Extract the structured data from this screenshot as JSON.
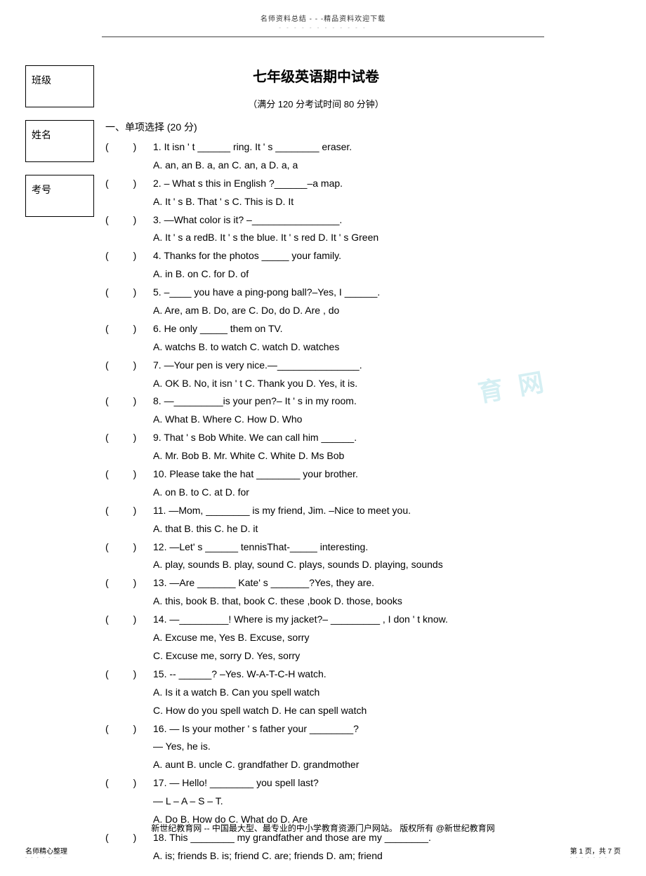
{
  "header": {
    "top_text": "名师资料总结 - - -精品资料欢迎下载",
    "dots": "- - - - - - - - - - - -"
  },
  "labels": {
    "class": "班级",
    "name": "姓名",
    "exam_no": "考号"
  },
  "title": "七年级英语期中试卷",
  "subtitle": "（满分  120 分考试时间   80 分钟）",
  "section": "一、单项选择 (20 分)",
  "questions": [
    {
      "num": "1",
      "text": "It isn '  t ______ ring. It  '  s ________ eraser.",
      "opts": "A. an, an   B. a, an     C. an, a            D. a, a"
    },
    {
      "num": "2",
      "text": "– What  s this in English ?______–a map.",
      "opts": "A. It '  s  B. That '  s                C. This is      D. It"
    },
    {
      "num": "3",
      "text": "—What color is it? –________________.",
      "opts": "A. It  '  s a redB. It  '  s the blue. It  '  s red    D. It '  s Green"
    },
    {
      "num": "4",
      "text": "Thanks for the photos _____ your family.",
      "opts": "A. in            B. on               C. for           D. of"
    },
    {
      "num": "5",
      "text": "–____ you have a ping-pong ball?–Yes, I ______.",
      "opts": "A. Are, am         B. Do, are        C. Do, do       D. Are , do"
    },
    {
      "num": "6",
      "text": "He only _____ them on TV.",
      "opts": "A. watchs         B. to watch        C. watch       D. watches"
    },
    {
      "num": "7",
      "text": "—Your pen is very nice.—_______________.",
      "opts": "A. OK                B. No, it isn    '   t  C. Thank you      D. Yes, it is."
    },
    {
      "num": "8",
      "text": "—_________is your pen?– It ' s in my room.",
      "opts": "A. What            B. Where          C. How            D. Who"
    },
    {
      "num": "9",
      "text": "That '  s Bob White. We can call him ______.",
      "opts": "A. Mr. Bob        B. Mr. White        C. White            D. Ms Bob"
    },
    {
      "num": "10",
      "text": "Please take the hat ________ your brother.",
      "opts": " A. on      B. to        C. at         D. for"
    },
    {
      "num": "11",
      "text": "—Mom, ________ is my friend, Jim. –Nice to meet you.",
      "opts": "A. that               B. this              C. he         D. it"
    },
    {
      "num": "12",
      "text": "—Let' s ______ tennisThat-_____ interesting.",
      "opts": "A. play, sounds   B. play, sound   C. plays, sounds      D. playing, sounds"
    },
    {
      "num": "13",
      "text": "—Are _______ Kate'  s _______?Yes, they are.",
      "opts": "A. this, book     B. that, book           C. these ,book   D. those, books"
    },
    {
      "num": "14",
      "text": "—_________! Where is my jacket?– _________ , I don   '  t know.",
      "opts": "A. Excuse me, Yes            B. Excuse, sorry\nC. Excuse me, sorry          D. Yes, sorry"
    },
    {
      "num": "15",
      "text": "-- ______? –Yes. W-A-T-C-H watch.",
      "opts": "A. Is it a watch                       B. Can you spell watch\nC. How do you spell watch       D. He can spell watch"
    },
    {
      "num": "16",
      "text": "— Is your mother  '  s father your ________?\n— Yes, he is.",
      "opts": " A. aunt        B. uncle       C. grandfather       D. grandmother"
    },
    {
      "num": "17",
      "text": "— Hello! ________ you spell last?\n— L – A – S – T.",
      "opts": "A. Do          B. How do         C. What do          D. Are"
    },
    {
      "num": "18",
      "text": "This ________ my grandfather and those are my ________.",
      "opts": "A. is; friends    B. is; friend         C. are; friends       D. am; friend"
    }
  ],
  "footer": "新世纪教育网   -- 中国最大型、最专业的中小学教育资源门户网站。           版权所有 @新世纪教育网",
  "bottom_left": "名师精心整理",
  "bottom_right": "第 1 页，共 7 页",
  "bottom_dots": "- - - - - - -",
  "watermark": "育 网"
}
